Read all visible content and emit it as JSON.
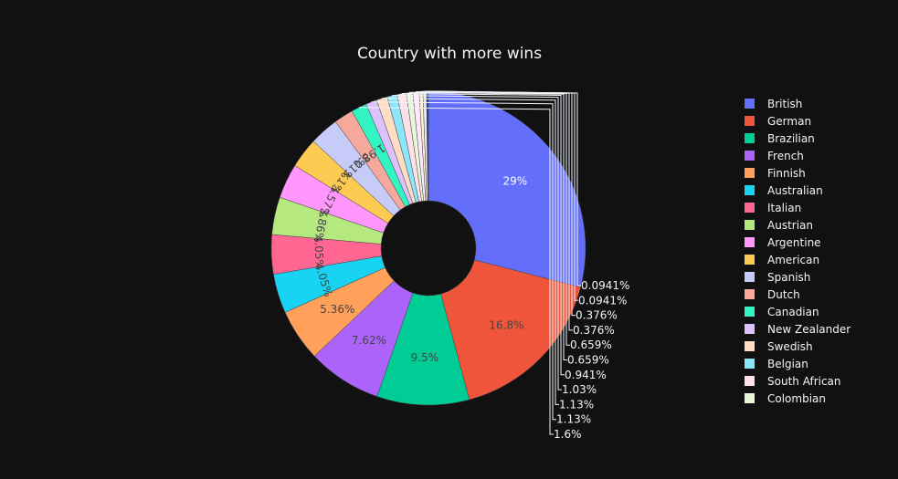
{
  "chart_data": {
    "type": "pie",
    "hole": true,
    "title": "Country with more wins",
    "legend_position": "right",
    "slices": [
      {
        "label": "British",
        "value": 29,
        "text": "29%",
        "color": "#636efa"
      },
      {
        "label": "German",
        "value": 16.8,
        "text": "16.8%",
        "color": "#ef553b"
      },
      {
        "label": "Brazilian",
        "value": 9.5,
        "text": "9.5%",
        "color": "#00cc96"
      },
      {
        "label": "French",
        "value": 7.62,
        "text": "7.62%",
        "color": "#ab63fa"
      },
      {
        "label": "Finnish",
        "value": 5.36,
        "text": "5.36%",
        "color": "#ffa15a"
      },
      {
        "label": "Australian",
        "value": 4.05,
        "text": "4.05%",
        "color": "#19d3f3"
      },
      {
        "label": "Italian",
        "value": 4.05,
        "text": "4.05%",
        "color": "#ff6692"
      },
      {
        "label": "Austrian",
        "value": 3.86,
        "text": "3.86%",
        "color": "#b6e880"
      },
      {
        "label": "Argentine",
        "value": 3.57,
        "text": "3.57%",
        "color": "#ff97ff"
      },
      {
        "label": "American",
        "value": 3.1,
        "text": "3.1%",
        "color": "#fecb52"
      },
      {
        "label": "Spanish",
        "value": 3.01,
        "text": "3.01%",
        "color": "#c6cbf8"
      },
      {
        "label": "Dutch",
        "value": 1.98,
        "text": "1.98%",
        "color": "#f7a89d"
      },
      {
        "label": "Canadian",
        "value": 1.6,
        "text": "1.6%",
        "color": "#33f5c4"
      },
      {
        "label": "New Zealander",
        "value": 1.13,
        "text": "1.13%",
        "color": "#dcc1fd"
      },
      {
        "label": "Swedish",
        "value": 1.13,
        "text": "1.13%",
        "color": "#ffdcc4"
      },
      {
        "label": "Belgian",
        "value": 1.03,
        "text": "1.03%",
        "color": "#8ae6f8"
      },
      {
        "label": "South African",
        "value": 0.941,
        "text": "0.941%",
        "color": "#ffe0e8"
      },
      {
        "label": "Colombian",
        "value": 0.659,
        "text": "0.659%",
        "color": "#e8f7d8"
      },
      {
        "label": "",
        "value": 0.659,
        "text": "0.659%",
        "color": "#ffe8ff"
      },
      {
        "label": "",
        "value": 0.376,
        "text": "0.376%",
        "color": "#fff1cb"
      },
      {
        "label": "",
        "value": 0.376,
        "text": "0.376%",
        "color": "#e4e6fc"
      },
      {
        "label": "",
        "value": 0.0941,
        "text": "0.0941%",
        "color": "#1f2ea8"
      },
      {
        "label": "",
        "value": 0.0941,
        "text": "0.0941%",
        "color": "#3344cc"
      }
    ]
  }
}
